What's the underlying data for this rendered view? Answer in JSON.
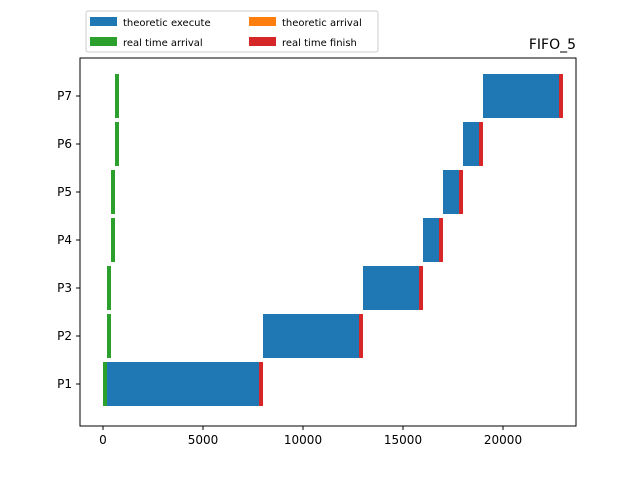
{
  "chart_data": {
    "type": "bar",
    "orientation": "horizontal",
    "stacked_gantt": true,
    "title": "FIFO_5",
    "xlabel": "",
    "ylabel": "",
    "xlim": [
      -1150,
      23650
    ],
    "xticks": [
      0,
      5000,
      10000,
      15000,
      20000
    ],
    "xtick_labels": [
      "0",
      "5000",
      "10000",
      "15000",
      "20000"
    ],
    "categories": [
      "P1",
      "P2",
      "P3",
      "P4",
      "P5",
      "P6",
      "P7"
    ],
    "grid": false,
    "legend": {
      "placement": "above-top-left",
      "columns": 2,
      "entries": [
        {
          "label": "theoretic execute",
          "color": "#1f77b4"
        },
        {
          "label": "theoretic arrival",
          "color": "#ff7f0e"
        },
        {
          "label": "real time arrival",
          "color": "#2ca02c"
        },
        {
          "label": "real time finish",
          "color": "#d62728"
        }
      ]
    },
    "series": [
      {
        "name": "theoretic execute",
        "color": "#1f77b4",
        "spans": [
          [
            0,
            8000
          ],
          [
            8000,
            13000
          ],
          [
            13000,
            16000
          ],
          [
            16000,
            17000
          ],
          [
            17000,
            18000
          ],
          [
            18000,
            19000
          ],
          [
            19000,
            23000
          ]
        ]
      },
      {
        "name": "theoretic arrival",
        "color": "#ff7f0e",
        "spans": [
          [
            0,
            0
          ],
          [
            200,
            200
          ],
          [
            200,
            200
          ],
          [
            400,
            400
          ],
          [
            400,
            400
          ],
          [
            600,
            600
          ],
          [
            600,
            600
          ]
        ]
      },
      {
        "name": "real time arrival",
        "color": "#2ca02c",
        "spans": [
          [
            0,
            200
          ],
          [
            200,
            300
          ],
          [
            200,
            300
          ],
          [
            400,
            500
          ],
          [
            400,
            500
          ],
          [
            600,
            700
          ],
          [
            600,
            700
          ]
        ]
      },
      {
        "name": "real time finish",
        "color": "#d62728",
        "spans": [
          [
            7800,
            8000
          ],
          [
            12800,
            13000
          ],
          [
            15800,
            16000
          ],
          [
            16800,
            17000
          ],
          [
            17800,
            18000
          ],
          [
            18800,
            19000
          ],
          [
            22800,
            23000
          ]
        ]
      }
    ]
  }
}
